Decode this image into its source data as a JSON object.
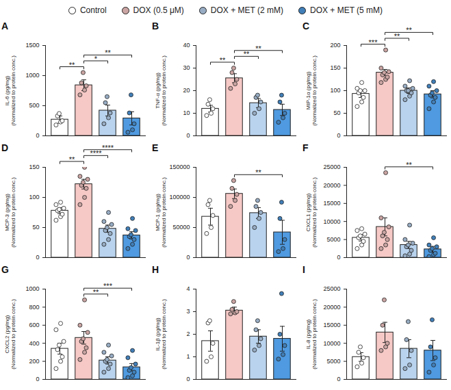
{
  "chart_data": [
    {
      "type": "bar",
      "title": "A",
      "y_label": "IL-6 (pg/mg)\n(Normalized to protein conc.)",
      "categories": [
        "Control",
        "DOX (0.5 μM)",
        "DOX + MET (2 mM)",
        "DOX + MET (5 mM)"
      ],
      "colors": [
        "#ffffff",
        "#f6c9c6",
        "#b9d3ee",
        "#4f9ae0"
      ],
      "values": [
        270,
        840,
        420,
        290
      ],
      "errors": [
        60,
        90,
        90,
        110
      ],
      "points": [
        [
          180,
          230,
          250,
          330,
          370
        ],
        [
          680,
          760,
          830,
          880,
          1050
        ],
        [
          200,
          300,
          380,
          550,
          650
        ],
        [
          60,
          100,
          200,
          380,
          680
        ]
      ],
      "significance": [
        {
          "from": "Control",
          "to": "DOX (0.5 μM)",
          "label": "**"
        },
        {
          "from": "DOX (0.5 μM)",
          "to": "DOX + MET (2 mM)",
          "label": "*"
        },
        {
          "from": "DOX (0.5 μM)",
          "to": "DOX + MET (5 mM)",
          "label": "**"
        }
      ],
      "ylim": [
        0,
        1500
      ],
      "yticks": [
        0,
        500,
        1000,
        1500
      ],
      "tick_labels": "y",
      "legend": "top"
    },
    {
      "type": "bar",
      "title": "B",
      "y_label": "TNF-α (pg/mg)\n(Normalized to protein conc.)",
      "categories": [
        "Control",
        "DOX (0.5 μM)",
        "DOX + MET (2 mM)",
        "DOX + MET (5 mM)"
      ],
      "colors": [
        "#ffffff",
        "#f6c9c6",
        "#b9d3ee",
        "#4f9ae0"
      ],
      "values": [
        12,
        25.5,
        14.5,
        11.5
      ],
      "errors": [
        1.5,
        2,
        2,
        2.5
      ],
      "points": [
        [
          9,
          10,
          12,
          14,
          16
        ],
        [
          21,
          23,
          25,
          28,
          30
        ],
        [
          10,
          12,
          15,
          17,
          18
        ],
        [
          6,
          8,
          10,
          15,
          18
        ]
      ],
      "significance": [
        {
          "from": "Control",
          "to": "DOX (0.5 μM)",
          "label": "**"
        },
        {
          "from": "DOX (0.5 μM)",
          "to": "DOX + MET (2 mM)",
          "label": "**"
        },
        {
          "from": "DOX (0.5 μM)",
          "to": "DOX + MET (5 mM)",
          "label": "**"
        }
      ],
      "ylim": [
        0,
        40
      ],
      "yticks": [
        0,
        10,
        20,
        30,
        40
      ],
      "tick_labels": "y",
      "legend": "top"
    },
    {
      "type": "bar",
      "title": "C",
      "y_label": "MIP-1α (pg/mg)\n(Normalized to protein conc.)",
      "categories": [
        "Control",
        "DOX (0.5 μM)",
        "DOX + MET (2 mM)",
        "DOX + MET (5 mM)"
      ],
      "colors": [
        "#ffffff",
        "#f6c9c6",
        "#b9d3ee",
        "#4f9ae0"
      ],
      "values": [
        93,
        140,
        100,
        92
      ],
      "errors": [
        8,
        7,
        6,
        8
      ],
      "points": [
        [
          65,
          75,
          85,
          95,
          100,
          100,
          105,
          118
        ],
        [
          118,
          125,
          130,
          135,
          140,
          142,
          150,
          190
        ],
        [
          80,
          88,
          95,
          100,
          100,
          105,
          110,
          122
        ],
        [
          60,
          75,
          85,
          90,
          95,
          100,
          110,
          120
        ]
      ],
      "significance": [
        {
          "from": "Control",
          "to": "DOX (0.5 μM)",
          "label": "***"
        },
        {
          "from": "DOX (0.5 μM)",
          "to": "DOX + MET (2 mM)",
          "label": "**"
        },
        {
          "from": "DOX (0.5 μM)",
          "to": "DOX + MET (5 mM)",
          "label": "**"
        }
      ],
      "ylim": [
        0,
        200
      ],
      "yticks": [
        0,
        50,
        100,
        150,
        200
      ],
      "tick_labels": "y",
      "legend": "top"
    },
    {
      "type": "bar",
      "title": "D",
      "y_label": "MCP-3 (pg/mg)\n(Normalized to protein conc.)",
      "categories": [
        "Control",
        "DOX (0.5 μM)",
        "DOX + MET (2 mM)",
        "DOX + MET (5 mM)"
      ],
      "colors": [
        "#ffffff",
        "#f6c9c6",
        "#b9d3ee",
        "#4f9ae0"
      ],
      "values": [
        78,
        122,
        48,
        37
      ],
      "errors": [
        5,
        8,
        6,
        6
      ],
      "points": [
        [
          62,
          68,
          72,
          78,
          80,
          82,
          88,
          92
        ],
        [
          88,
          100,
          115,
          120,
          125,
          130,
          135,
          150
        ],
        [
          22,
          30,
          40,
          45,
          50,
          55,
          60,
          75
        ],
        [
          15,
          22,
          30,
          35,
          38,
          45,
          48,
          65
        ]
      ],
      "significance": [
        {
          "from": "Control",
          "to": "DOX (0.5 μM)",
          "label": "**"
        },
        {
          "from": "DOX (0.5 μM)",
          "to": "DOX + MET (2 mM)",
          "label": "****"
        },
        {
          "from": "DOX (0.5 μM)",
          "to": "DOX + MET (5 mM)",
          "label": "****"
        }
      ],
      "ylim": [
        0,
        150
      ],
      "yticks": [
        0,
        50,
        100,
        150
      ],
      "tick_labels": "y",
      "legend": "top"
    },
    {
      "type": "bar",
      "title": "E",
      "y_label": "MCP-1 (pg/mg)\n(Normalized to protein conc.)",
      "categories": [
        "Control",
        "DOX (0.5 μM)",
        "DOX + MET (2 mM)",
        "DOX + MET (5 mM)"
      ],
      "colors": [
        "#ffffff",
        "#f6c9c6",
        "#b9d3ee",
        "#4f9ae0"
      ],
      "values": [
        68000,
        106000,
        74000,
        42000
      ],
      "errors": [
        14000,
        8000,
        9000,
        20000
      ],
      "points": [
        [
          40000,
          50000,
          70000,
          88000,
          95000
        ],
        [
          85000,
          95000,
          105000,
          115000,
          128000
        ],
        [
          50000,
          65000,
          75000,
          85000,
          95000
        ],
        [
          10000,
          15000,
          30000,
          65000,
          92000
        ]
      ],
      "significance": [
        {
          "from": "DOX (0.5 μM)",
          "to": "DOX + MET (5 mM)",
          "label": "**"
        }
      ],
      "ylim": [
        0,
        150000
      ],
      "yticks": [
        0,
        50000,
        100000,
        150000
      ],
      "tick_labels": "y",
      "legend": "top"
    },
    {
      "type": "bar",
      "title": "F",
      "y_label": "CXCL1 (pg/mg)\n(Normalized to protein conc.)",
      "categories": [
        "Control",
        "DOX (0.5 μM)",
        "DOX + MET (2 mM)",
        "DOX + MET (5 mM)"
      ],
      "colors": [
        "#ffffff",
        "#f6c9c6",
        "#b9d3ee",
        "#4f9ae0"
      ],
      "values": [
        5500,
        8500,
        3500,
        2300
      ],
      "errors": [
        900,
        2500,
        1000,
        800
      ],
      "points": [
        [
          2500,
          3500,
          4500,
          5500,
          6000,
          6500,
          7500,
          8000
        ],
        [
          2500,
          3500,
          5000,
          6000,
          7000,
          8500,
          11000,
          23500
        ],
        [
          500,
          1000,
          2000,
          3000,
          3500,
          4000,
          5000,
          9000
        ],
        [
          300,
          800,
          1200,
          2000,
          2500,
          3000,
          3500,
          5500
        ]
      ],
      "significance": [
        {
          "from": "DOX (0.5 μM)",
          "to": "DOX + MET (5 mM)",
          "label": "**"
        }
      ],
      "ylim": [
        0,
        25000
      ],
      "yticks": [
        0,
        5000,
        10000,
        15000,
        20000,
        25000
      ],
      "tick_labels": "y",
      "legend": "top"
    },
    {
      "type": "bar",
      "title": "G",
      "y_label": "CXCL2 (pg/mg)\n(Normalized to protein conc.)",
      "categories": [
        "Control",
        "DOX (0.5 μM)",
        "DOX + MET (2 mM)",
        "DOX + MET (5 mM)"
      ],
      "colors": [
        "#ffffff",
        "#f6c9c6",
        "#b9d3ee",
        "#4f9ae0"
      ],
      "values": [
        340,
        460,
        210,
        135
      ],
      "errors": [
        60,
        70,
        40,
        40
      ],
      "points": [
        [
          120,
          200,
          250,
          330,
          380,
          420,
          550,
          620
        ],
        [
          220,
          300,
          350,
          420,
          450,
          520,
          600,
          880
        ],
        [
          80,
          120,
          170,
          200,
          220,
          260,
          300,
          380
        ],
        [
          20,
          40,
          80,
          100,
          130,
          170,
          240,
          320
        ]
      ],
      "significance": [
        {
          "from": "DOX (0.5 μM)",
          "to": "DOX + MET (2 mM)",
          "label": "**"
        },
        {
          "from": "DOX (0.5 μM)",
          "to": "DOX + MET (5 mM)",
          "label": "***"
        }
      ],
      "ylim": [
        0,
        1000
      ],
      "yticks": [
        0,
        200,
        400,
        600,
        800,
        1000
      ],
      "tick_labels": "y",
      "legend": "top"
    },
    {
      "type": "bar",
      "title": "H",
      "y_label": "IL-1β (pg/mg)\n(Normalized to protein conc.)",
      "categories": [
        "Control",
        "DOX (0.5 μM)",
        "DOX + MET (2 mM)",
        "DOX + MET (5 mM)"
      ],
      "colors": [
        "#ffffff",
        "#f6c9c6",
        "#b9d3ee",
        "#4f9ae0"
      ],
      "values": [
        1.7,
        3.05,
        1.9,
        1.8
      ],
      "errors": [
        0.45,
        0.15,
        0.3,
        0.55
      ],
      "points": [
        [
          0.8,
          1.0,
          1.6,
          2.5,
          2.6
        ],
        [
          2.9,
          2.95,
          3.0,
          3.1,
          3.45
        ],
        [
          1.3,
          1.5,
          1.8,
          2.2,
          2.6
        ],
        [
          0.9,
          1.1,
          1.5,
          2.0,
          3.8
        ]
      ],
      "significance": [],
      "ylim": [
        0,
        4
      ],
      "yticks": [
        0,
        1,
        2,
        3,
        4
      ],
      "tick_labels": "y",
      "legend": "top"
    },
    {
      "type": "bar",
      "title": "I",
      "y_label": "IL-8 (pg/mg)\n(Normalized to protein conc.)",
      "categories": [
        "Control",
        "DOX (0.5 μM)",
        "DOX + MET (2 mM)",
        "DOX + MET (5 mM)"
      ],
      "colors": [
        "#ffffff",
        "#f6c9c6",
        "#b9d3ee",
        "#4f9ae0"
      ],
      "values": [
        6200,
        13000,
        8500,
        8000
      ],
      "errors": [
        1200,
        2800,
        2500,
        2800
      ],
      "points": [
        [
          3500,
          4500,
          6000,
          7500,
          9000
        ],
        [
          8000,
          9000,
          10000,
          15000,
          22000
        ],
        [
          3000,
          4000,
          8000,
          11000,
          16000
        ],
        [
          2000,
          4000,
          6000,
          9000,
          16500
        ]
      ],
      "significance": [],
      "ylim": [
        0,
        25000
      ],
      "yticks": [
        0,
        5000,
        10000,
        15000,
        20000,
        25000
      ],
      "tick_labels": "y",
      "legend": "top"
    }
  ]
}
